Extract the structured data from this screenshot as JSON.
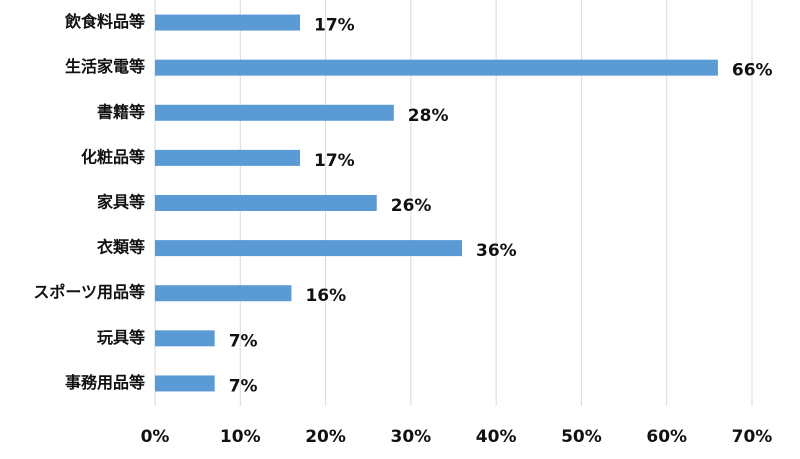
{
  "chart_data": {
    "type": "bar",
    "orientation": "horizontal",
    "categories": [
      "飲食料品等",
      "生活家電等",
      "書籍等",
      "化粧品等",
      "家具等",
      "衣類等",
      "スポーツ用品等",
      "玩具等",
      "事務用品等"
    ],
    "values": [
      17,
      66,
      28,
      17,
      26,
      36,
      16,
      7,
      7
    ],
    "value_labels": [
      "17%",
      "66%",
      "28%",
      "17%",
      "26%",
      "36%",
      "16%",
      "7%",
      "7%"
    ],
    "color": "#5b9bd5",
    "xlim": [
      0,
      70
    ],
    "xticks": [
      {
        "value": 0,
        "label": "0%"
      },
      {
        "value": 10,
        "label": "10%"
      },
      {
        "value": 20,
        "label": "20%"
      },
      {
        "value": 30,
        "label": "30%"
      },
      {
        "value": 40,
        "label": "40%"
      },
      {
        "value": 50,
        "label": "50%"
      },
      {
        "value": 60,
        "label": "60%"
      },
      {
        "value": 70,
        "label": "70%"
      }
    ],
    "grid": true
  }
}
